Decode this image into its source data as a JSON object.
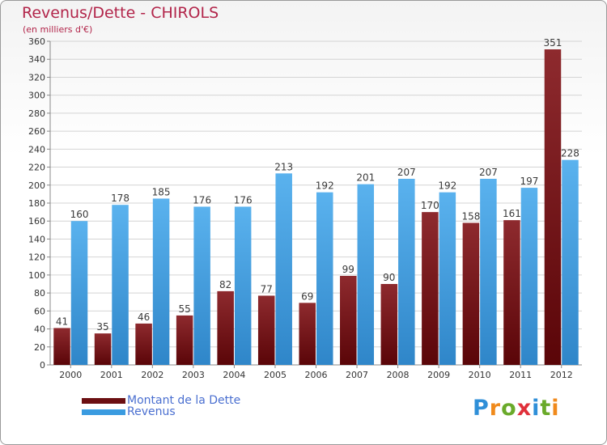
{
  "title": "Revenus/Dette - CHIROLS",
  "subtitle": "(en milliers d'€)",
  "logo": {
    "text": "Proxiti",
    "letter_colors": [
      "#2f8fd8",
      "#f08a1c",
      "#6aaa2a",
      "#e0303a",
      "#2f8fd8",
      "#6aaa2a",
      "#f08a1c"
    ]
  },
  "colors": {
    "debt": "#7a1a1e",
    "revenue": "#4aa5e6",
    "label": "#3a3a3a"
  },
  "legend": [
    {
      "label": "Montant de la Dette",
      "color": "#6b0f12"
    },
    {
      "label": "Revenus",
      "color": "#3a9be0"
    }
  ],
  "chart_data": {
    "type": "bar",
    "title": "Revenus/Dette - CHIROLS",
    "ylabel": "(en milliers d'€)",
    "categories": [
      "2000",
      "2001",
      "2002",
      "2003",
      "2004",
      "2005",
      "2006",
      "2007",
      "2008",
      "2009",
      "2010",
      "2011",
      "2012"
    ],
    "series": [
      {
        "name": "Montant de la Dette",
        "values": [
          41,
          35,
          46,
          55,
          82,
          77,
          69,
          99,
          90,
          170,
          158,
          161,
          351
        ]
      },
      {
        "name": "Revenus",
        "values": [
          160,
          178,
          185,
          176,
          176,
          213,
          192,
          201,
          207,
          192,
          207,
          197,
          228
        ]
      }
    ],
    "ylim": [
      0,
      360
    ],
    "ytick_step": 20,
    "grid": true,
    "legend_position": "bottom-left"
  }
}
